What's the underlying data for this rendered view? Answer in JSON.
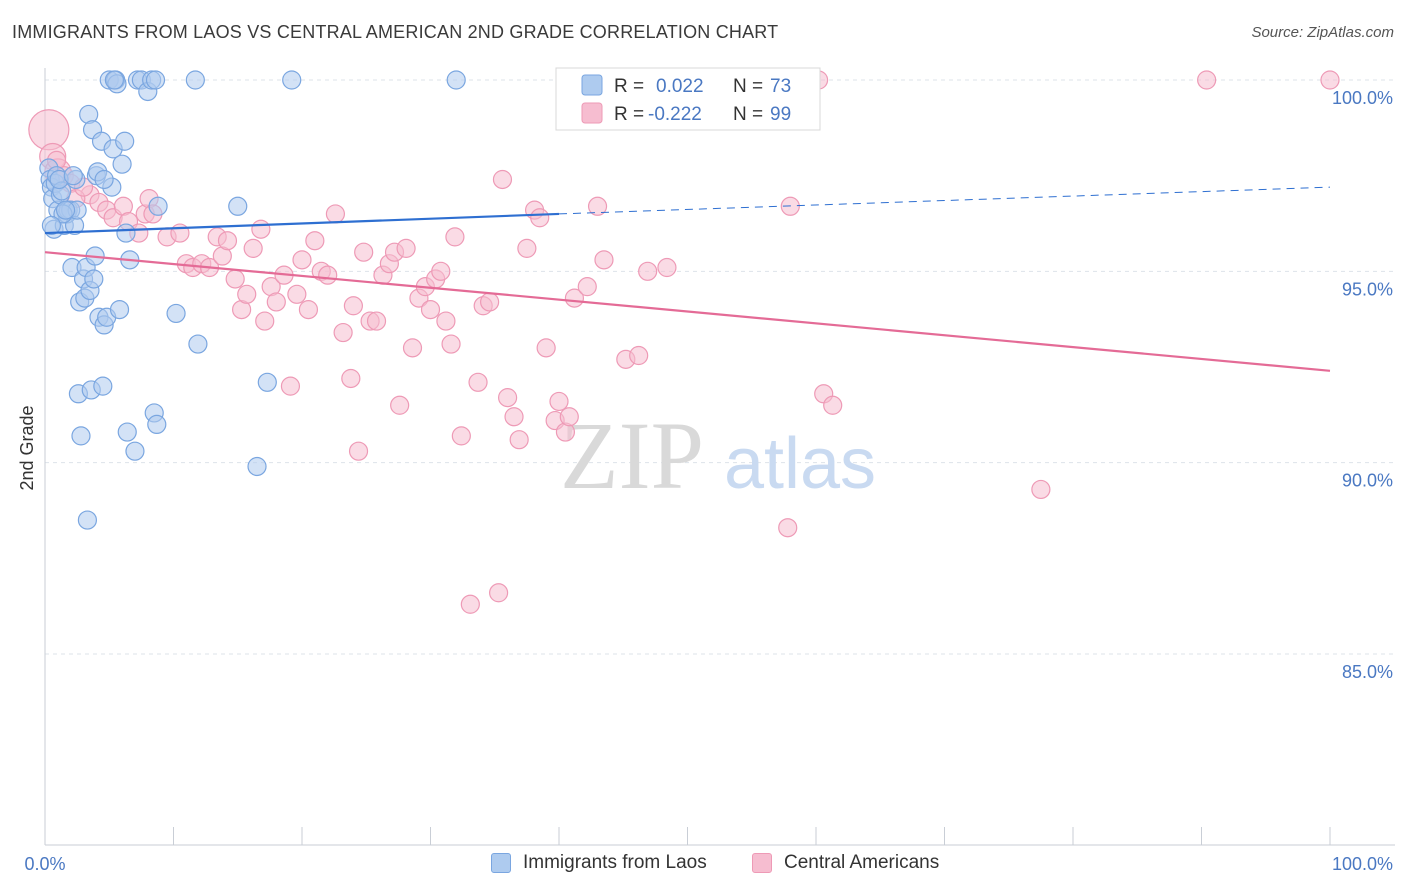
{
  "title": "IMMIGRANTS FROM LAOS VS CENTRAL AMERICAN 2ND GRADE CORRELATION CHART",
  "source": "Source: ZipAtlas.com",
  "watermark": {
    "zip": "ZIP",
    "atlas": "atlas"
  },
  "colors": {
    "blue_fill": "#aecbef",
    "blue_stroke": "#7aa6e0",
    "blue_line": "#2e6fd1",
    "pink_fill": "#f6bdd0",
    "pink_stroke": "#ee9ab6",
    "pink_line": "#e46b96",
    "grid": "#dde3ea",
    "tick_text": "#4a78c2"
  },
  "legend": {
    "r_label": "R =",
    "n_label": "N =",
    "rows": [
      {
        "series": "Immigrants from Laos",
        "r": "0.022",
        "n": "73",
        "color": "blue"
      },
      {
        "series": "Central Americans",
        "r": "-0.222",
        "n": "99",
        "color": "pink"
      }
    ]
  },
  "bottom_legend": [
    {
      "label": "Immigrants from Laos",
      "color": "blue"
    },
    {
      "label": "Central Americans",
      "color": "pink"
    }
  ],
  "chart_data": {
    "type": "scatter",
    "title": "IMMIGRANTS FROM LAOS VS CENTRAL AMERICAN 2ND GRADE CORRELATION CHART",
    "xlabel": "",
    "ylabel": "2nd Grade",
    "xlim": [
      0,
      100
    ],
    "ylim": [
      80.5,
      100.8
    ],
    "x_tick_labels": [
      {
        "value": 0,
        "label": "0.0%"
      },
      {
        "value": 100,
        "label": "100.0%"
      }
    ],
    "y_ticks": [
      {
        "value": 100,
        "label": "100.0%"
      },
      {
        "value": 95,
        "label": "95.0%"
      },
      {
        "value": 90,
        "label": "90.0%"
      },
      {
        "value": 85,
        "label": "85.0%"
      }
    ],
    "x_minor_ticks": [
      10,
      20,
      30,
      40,
      50,
      60,
      70,
      80,
      90,
      100
    ],
    "grid": true,
    "series": [
      {
        "name": "Immigrants from Laos",
        "color": "blue",
        "trend": {
          "x0": 0,
          "y0": 96.0,
          "x1": 40,
          "y1": 96.5,
          "dash_to_x": 100,
          "dash_to_y": 97.2
        },
        "points": [
          [
            0.3,
            97.7
          ],
          [
            0.4,
            97.4
          ],
          [
            0.5,
            97.2
          ],
          [
            0.6,
            96.9
          ],
          [
            0.7,
            96.1
          ],
          [
            0.8,
            97.3
          ],
          [
            0.9,
            97.5
          ],
          [
            1.0,
            96.6
          ],
          [
            1.2,
            97.0
          ],
          [
            1.3,
            97.1
          ],
          [
            1.5,
            96.2
          ],
          [
            1.7,
            96.5
          ],
          [
            1.8,
            96.6
          ],
          [
            2.0,
            96.6
          ],
          [
            2.1,
            95.1
          ],
          [
            2.3,
            96.2
          ],
          [
            2.4,
            97.4
          ],
          [
            2.5,
            96.6
          ],
          [
            2.6,
            91.8
          ],
          [
            2.7,
            94.2
          ],
          [
            2.8,
            90.7
          ],
          [
            3.0,
            94.8
          ],
          [
            3.1,
            94.3
          ],
          [
            3.2,
            95.1
          ],
          [
            3.3,
            88.5
          ],
          [
            3.4,
            99.1
          ],
          [
            3.5,
            94.5
          ],
          [
            3.6,
            91.9
          ],
          [
            3.7,
            98.7
          ],
          [
            3.9,
            95.4
          ],
          [
            4.0,
            97.5
          ],
          [
            4.1,
            97.6
          ],
          [
            4.2,
            93.8
          ],
          [
            4.4,
            98.4
          ],
          [
            4.5,
            92.0
          ],
          [
            4.6,
            93.6
          ],
          [
            4.8,
            93.8
          ],
          [
            5.0,
            100.0
          ],
          [
            5.2,
            97.2
          ],
          [
            5.3,
            98.2
          ],
          [
            5.5,
            100.0
          ],
          [
            5.6,
            99.9
          ],
          [
            5.8,
            94.0
          ],
          [
            6.0,
            97.8
          ],
          [
            6.2,
            98.4
          ],
          [
            6.3,
            96.0
          ],
          [
            6.4,
            90.8
          ],
          [
            6.6,
            95.3
          ],
          [
            7.0,
            90.3
          ],
          [
            7.2,
            100.0
          ],
          [
            7.5,
            100.0
          ],
          [
            8.0,
            99.7
          ],
          [
            8.3,
            100.0
          ],
          [
            8.5,
            91.3
          ],
          [
            8.7,
            91.0
          ],
          [
            8.8,
            96.7
          ],
          [
            10.2,
            93.9
          ],
          [
            11.7,
            100.0
          ],
          [
            11.9,
            93.1
          ],
          [
            15.0,
            96.7
          ],
          [
            16.5,
            89.9
          ],
          [
            17.3,
            92.1
          ],
          [
            19.2,
            100.0
          ],
          [
            32.0,
            100.0
          ],
          [
            4.6,
            97.4
          ],
          [
            1.1,
            97.4
          ],
          [
            1.4,
            96.5
          ],
          [
            2.2,
            97.5
          ],
          [
            0.5,
            96.2
          ],
          [
            1.6,
            96.6
          ],
          [
            3.8,
            94.8
          ],
          [
            8.6,
            100.0
          ],
          [
            5.4,
            100.0
          ]
        ]
      },
      {
        "name": "Central Americans",
        "color": "pink",
        "trend": {
          "x0": 0,
          "y0": 95.5,
          "x1": 100,
          "y1": 92.4
        },
        "points": [
          [
            0.3,
            98.7
          ],
          [
            0.6,
            98.0
          ],
          [
            1.0,
            97.6
          ],
          [
            1.5,
            97.5
          ],
          [
            2.0,
            97.3
          ],
          [
            3.5,
            97.0
          ],
          [
            4.2,
            96.8
          ],
          [
            4.8,
            96.6
          ],
          [
            5.3,
            96.4
          ],
          [
            6.1,
            96.7
          ],
          [
            6.5,
            96.3
          ],
          [
            7.3,
            96.0
          ],
          [
            7.8,
            96.5
          ],
          [
            8.1,
            96.9
          ],
          [
            8.4,
            96.5
          ],
          [
            9.5,
            95.9
          ],
          [
            10.5,
            96.0
          ],
          [
            11.0,
            95.2
          ],
          [
            11.5,
            95.1
          ],
          [
            12.2,
            95.2
          ],
          [
            12.8,
            95.1
          ],
          [
            13.4,
            95.9
          ],
          [
            13.8,
            95.4
          ],
          [
            14.2,
            95.8
          ],
          [
            14.8,
            94.8
          ],
          [
            15.3,
            94.0
          ],
          [
            15.7,
            94.4
          ],
          [
            16.2,
            95.6
          ],
          [
            16.8,
            96.1
          ],
          [
            17.1,
            93.7
          ],
          [
            17.6,
            94.6
          ],
          [
            18.0,
            94.2
          ],
          [
            18.6,
            94.9
          ],
          [
            19.1,
            92.0
          ],
          [
            19.6,
            94.4
          ],
          [
            20.0,
            95.3
          ],
          [
            20.5,
            94.0
          ],
          [
            21.0,
            95.8
          ],
          [
            21.5,
            95.0
          ],
          [
            22.0,
            94.9
          ],
          [
            22.6,
            96.5
          ],
          [
            23.2,
            93.4
          ],
          [
            23.8,
            92.2
          ],
          [
            24.0,
            94.1
          ],
          [
            24.4,
            90.3
          ],
          [
            24.8,
            95.5
          ],
          [
            25.3,
            93.7
          ],
          [
            25.8,
            93.7
          ],
          [
            26.3,
            94.9
          ],
          [
            26.8,
            95.2
          ],
          [
            27.2,
            95.5
          ],
          [
            27.6,
            91.5
          ],
          [
            28.1,
            95.6
          ],
          [
            28.6,
            93.0
          ],
          [
            29.1,
            94.3
          ],
          [
            29.6,
            94.6
          ],
          [
            30.0,
            94.0
          ],
          [
            30.4,
            94.8
          ],
          [
            30.8,
            95.0
          ],
          [
            31.2,
            93.7
          ],
          [
            31.6,
            93.1
          ],
          [
            31.9,
            95.9
          ],
          [
            32.4,
            90.7
          ],
          [
            33.1,
            86.3
          ],
          [
            33.7,
            92.1
          ],
          [
            34.1,
            94.1
          ],
          [
            34.6,
            94.2
          ],
          [
            35.3,
            86.6
          ],
          [
            35.6,
            97.4
          ],
          [
            36.0,
            91.7
          ],
          [
            36.5,
            91.2
          ],
          [
            36.9,
            90.6
          ],
          [
            37.5,
            95.6
          ],
          [
            38.1,
            96.6
          ],
          [
            38.5,
            96.4
          ],
          [
            39.0,
            93.0
          ],
          [
            39.7,
            91.1
          ],
          [
            40.0,
            91.6
          ],
          [
            40.5,
            90.8
          ],
          [
            40.8,
            91.2
          ],
          [
            41.2,
            94.3
          ],
          [
            42.2,
            94.6
          ],
          [
            43.0,
            96.7
          ],
          [
            43.5,
            95.3
          ],
          [
            45.2,
            92.7
          ],
          [
            46.2,
            92.8
          ],
          [
            46.9,
            95.0
          ],
          [
            48.4,
            95.1
          ],
          [
            58.0,
            96.7
          ],
          [
            57.8,
            88.3
          ],
          [
            60.2,
            100.0
          ],
          [
            60.6,
            91.8
          ],
          [
            61.3,
            91.5
          ],
          [
            77.5,
            89.3
          ],
          [
            90.4,
            100.0
          ],
          [
            100.0,
            100.0
          ],
          [
            0.9,
            97.9
          ],
          [
            2.4,
            96.9
          ],
          [
            3.0,
            97.2
          ]
        ]
      }
    ]
  }
}
